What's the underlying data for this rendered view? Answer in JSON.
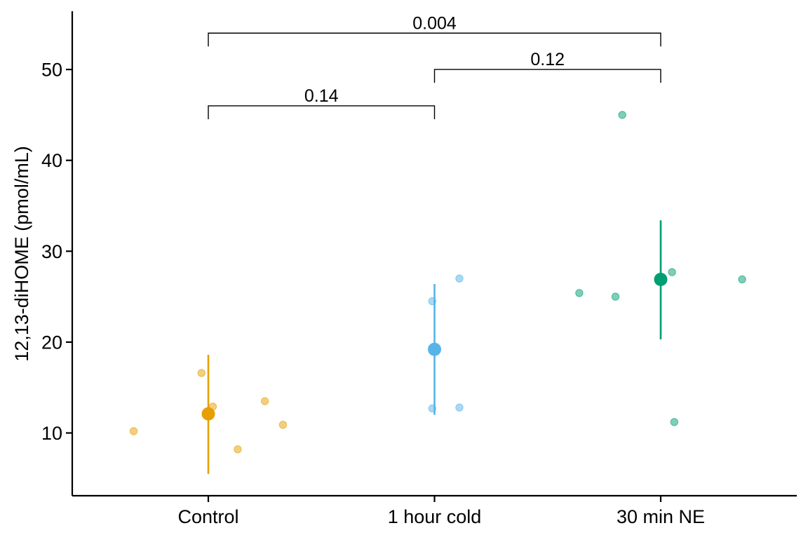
{
  "chart_data": {
    "type": "scatter",
    "title": "",
    "xlabel": "",
    "ylabel": "12,13-diHOME (pmol/mL)",
    "ylim": [
      3,
      56
    ],
    "yticks": [
      10,
      20,
      30,
      40,
      50
    ],
    "categories": [
      "Control",
      "1 hour cold",
      "30 min NE"
    ],
    "grid": false,
    "legend": "none",
    "series": [
      {
        "category": "Control",
        "color": "#E69F00",
        "points": [
          {
            "offset": -0.33,
            "value": 10.2
          },
          {
            "offset": -0.03,
            "value": 16.6
          },
          {
            "offset": 0.02,
            "value": 12.9
          },
          {
            "offset": 0.13,
            "value": 8.2
          },
          {
            "offset": 0.25,
            "value": 13.5
          },
          {
            "offset": 0.33,
            "value": 10.9
          }
        ],
        "mean": 12.1,
        "error": [
          5.5,
          18.6
        ]
      },
      {
        "category": "1 hour cold",
        "color": "#56B4E9",
        "points": [
          {
            "offset": -0.01,
            "value": 24.5
          },
          {
            "offset": 0.11,
            "value": 27.0
          },
          {
            "offset": -0.01,
            "value": 12.7
          },
          {
            "offset": 0.11,
            "value": 12.8
          }
        ],
        "mean": 19.2,
        "error": [
          12.0,
          26.4
        ]
      },
      {
        "category": "30 min NE",
        "color": "#009E73",
        "points": [
          {
            "offset": -0.36,
            "value": 25.4
          },
          {
            "offset": -0.2,
            "value": 25.0
          },
          {
            "offset": -0.17,
            "value": 45.0
          },
          {
            "offset": 0.05,
            "value": 27.7
          },
          {
            "offset": 0.06,
            "value": 11.2
          },
          {
            "offset": 0.36,
            "value": 26.9
          }
        ],
        "mean": 26.9,
        "error": [
          20.3,
          33.4
        ]
      }
    ],
    "comparisons": [
      {
        "from": "Control",
        "to": "1 hour cold",
        "label": "0.14",
        "y": 46
      },
      {
        "from": "1 hour cold",
        "to": "30 min NE",
        "label": "0.12",
        "y": 50
      },
      {
        "from": "Control",
        "to": "30 min NE",
        "label": "0.004",
        "y": 54
      }
    ]
  }
}
